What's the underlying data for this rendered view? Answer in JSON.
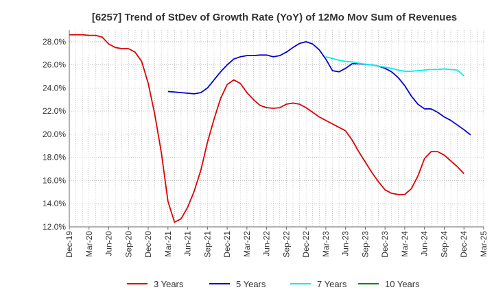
{
  "chart_data": {
    "type": "line",
    "title": "[6257]  Trend of StDev of Growth Rate (YoY) of 12Mo Mov Sum of Revenues",
    "xlabel": "",
    "ylabel": "",
    "ylim": [
      12.0,
      29.0
    ],
    "yticks": [
      12.0,
      14.0,
      16.0,
      18.0,
      20.0,
      22.0,
      24.0,
      26.0,
      28.0
    ],
    "ytick_labels": [
      "12.0%",
      "14.0%",
      "16.0%",
      "18.0%",
      "20.0%",
      "22.0%",
      "24.0%",
      "26.0%",
      "28.0%"
    ],
    "x_start": "Dec-19",
    "x_tick_labels": [
      "Dec-19",
      "Mar-20",
      "Jun-20",
      "Sep-20",
      "Dec-20",
      "Mar-21",
      "Jun-21",
      "Sep-21",
      "Dec-21",
      "Mar-22",
      "Jun-22",
      "Sep-22",
      "Dec-22",
      "Mar-23",
      "Jun-23",
      "Sep-23",
      "Dec-23",
      "Mar-24",
      "Jun-24",
      "Sep-24",
      "Dec-24",
      "Mar-25"
    ],
    "grid": true,
    "legend_position": "bottom",
    "series": [
      {
        "name": "3 Years",
        "color": "#dd0000",
        "start_index": 0,
        "values": [
          28.6,
          28.6,
          28.6,
          28.55,
          28.55,
          28.4,
          27.8,
          27.5,
          27.4,
          27.4,
          27.1,
          26.3,
          24.4,
          21.7,
          18.4,
          14.2,
          12.4,
          12.7,
          13.7,
          15.1,
          16.9,
          19.3,
          21.3,
          23.1,
          24.3,
          24.7,
          24.4,
          23.6,
          23.0,
          22.5,
          22.3,
          22.25,
          22.3,
          22.6,
          22.7,
          22.6,
          22.3,
          21.9,
          21.5,
          21.2,
          20.9,
          20.6,
          20.3,
          19.5,
          18.5,
          17.6,
          16.7,
          15.9,
          15.2,
          14.9,
          14.8,
          14.8,
          15.3,
          16.4,
          17.9,
          18.5,
          18.5,
          18.2,
          17.7,
          17.2,
          16.6
        ]
      },
      {
        "name": "5 Years",
        "color": "#0000cc",
        "start_index": 15,
        "values": [
          23.7,
          23.65,
          23.6,
          23.55,
          23.5,
          23.6,
          24.0,
          24.7,
          25.4,
          26.0,
          26.5,
          26.7,
          26.8,
          26.8,
          26.85,
          26.85,
          26.7,
          26.8,
          27.1,
          27.5,
          27.85,
          28.0,
          27.8,
          27.3,
          26.5,
          25.5,
          25.4,
          25.7,
          26.1,
          26.1,
          26.05,
          26.0,
          25.9,
          25.7,
          25.4,
          24.9,
          24.2,
          23.3,
          22.6,
          22.2,
          22.2,
          21.9,
          21.5,
          21.2,
          20.8,
          20.4,
          19.95
        ]
      },
      {
        "name": "7 Years",
        "color": "#00eeee",
        "start_index": 39,
        "values": [
          26.7,
          26.55,
          26.4,
          26.3,
          26.25,
          26.15,
          26.05,
          26.0,
          25.9,
          25.8,
          25.7,
          25.55,
          25.45,
          25.45,
          25.5,
          25.55,
          25.6,
          25.6,
          25.65,
          25.6,
          25.55,
          25.05
        ]
      },
      {
        "name": "10 Years",
        "color": "#008800",
        "start_index": 0,
        "values": []
      }
    ]
  }
}
